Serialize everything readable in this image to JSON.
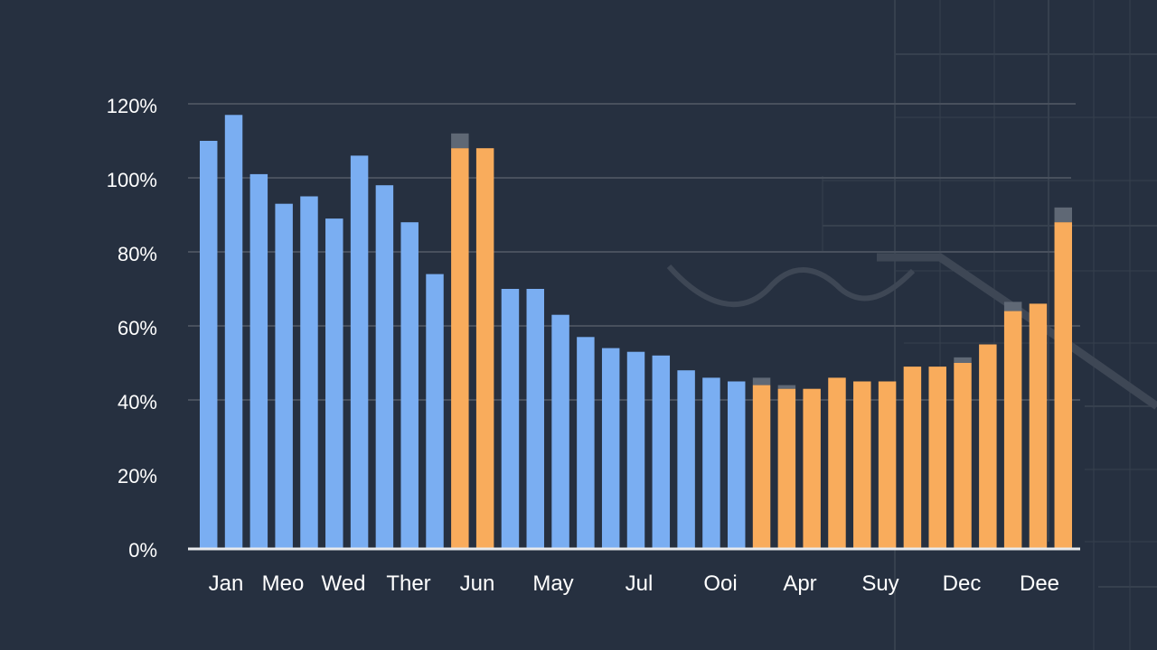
{
  "chart_data": {
    "type": "bar",
    "title": "",
    "xlabel": "",
    "ylabel": "",
    "ylim": [
      0,
      120
    ],
    "yticks": [
      "0%",
      "20%",
      "40%",
      "60%",
      "80%",
      "100%",
      "120%"
    ],
    "grid": true,
    "x_labels": [
      "Jan",
      "Meo",
      "Wed",
      "Ther",
      "Jun",
      "May",
      "Jul",
      "Ooi",
      "Apr",
      "Suy",
      "Dec",
      "Dee"
    ],
    "colors": {
      "blue": "#7aaef2",
      "orange": "#f9ac5c",
      "cap": "#5f6875",
      "grid": "#48505d",
      "axis": "#e8eaed"
    },
    "values": [
      110,
      117,
      101,
      93,
      95,
      89,
      106,
      98,
      88,
      74,
      108,
      108,
      70,
      70,
      63,
      57,
      54,
      53,
      52,
      48,
      46,
      45,
      44,
      43,
      43,
      46,
      45,
      45,
      49,
      49,
      50,
      55,
      64,
      66,
      88
    ],
    "bar_colors": [
      "blue",
      "blue",
      "blue",
      "blue",
      "blue",
      "blue",
      "blue",
      "blue",
      "blue",
      "blue",
      "orange",
      "orange",
      "blue",
      "blue",
      "blue",
      "blue",
      "blue",
      "blue",
      "blue",
      "blue",
      "blue",
      "blue",
      "orange",
      "orange",
      "orange",
      "orange",
      "orange",
      "orange",
      "orange",
      "orange",
      "orange",
      "orange",
      "orange",
      "orange",
      "orange"
    ],
    "caps": [
      0,
      0,
      0,
      0,
      0,
      0,
      0,
      0,
      0,
      0,
      4,
      0,
      0,
      0,
      0,
      0,
      0,
      0,
      0,
      0,
      0,
      0,
      2,
      1,
      0,
      0,
      0,
      0,
      0,
      0,
      1.5,
      0,
      2.5,
      0,
      4
    ]
  }
}
